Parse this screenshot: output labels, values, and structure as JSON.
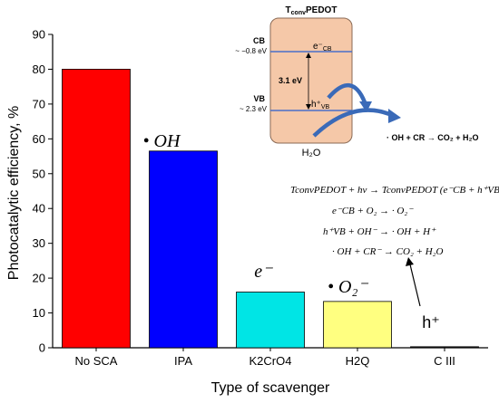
{
  "chart_data": {
    "type": "bar",
    "categories": [
      "No SCA",
      "IPA",
      "K2CrO4",
      "H2Q",
      "C III"
    ],
    "values": [
      80,
      56.5,
      16,
      13.3,
      0.3
    ],
    "colors": [
      "#ff0000",
      "#0000ff",
      "#00e5e5",
      "#ffff80",
      "#222222"
    ],
    "xlabel": "Type of scavenger",
    "ylabel": "Photocatalytic efficiency, %",
    "ylim": [
      0,
      90
    ],
    "yticks": [
      0,
      10,
      20,
      30,
      40,
      50,
      60,
      70,
      80,
      90
    ],
    "bar_annotations": [
      "",
      "• OH",
      "e⁻",
      "• O₂⁻",
      "h⁺"
    ],
    "grid": false
  },
  "diagram": {
    "title_t": "T",
    "title_sub": "conv",
    "title_rest": "PEDOT",
    "cb_label": "CB",
    "cb_energy": "~ −0.8 eV",
    "vb_label": "VB",
    "vb_energy": "~ 2.3 eV",
    "gap": "3.1 eV",
    "electron": "e⁻",
    "electron_sub": "CB",
    "hole": "h⁺",
    "hole_sub": "VB",
    "water": "H₂O",
    "reaction_arrow": "· OH + CR → CO₂ + H₂O"
  },
  "equations": [
    "TconvPEDOT + hν → TconvPEDOT (e⁻CB + h⁺VB)",
    "e⁻CB + O₂ → · O₂⁻",
    "h⁺VB + OH⁻ → · OH + H⁺",
    "· OH + CR⁻ → CO₂ + H₂O"
  ],
  "colors": {
    "box_fill": "#f5c8a8",
    "band_line": "#4a6fc9",
    "arrow": "#3a6ab8"
  }
}
